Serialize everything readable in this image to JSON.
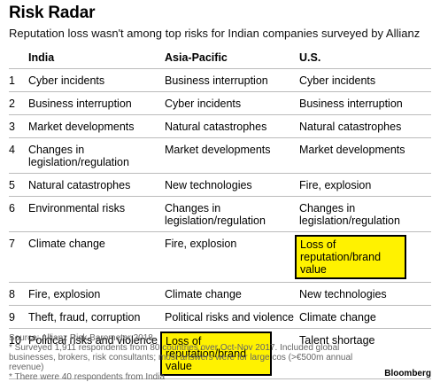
{
  "chart_data": {
    "type": "table",
    "title": "Risk Radar",
    "subtitle": "Reputation loss wasn't among top risks for Indian companies surveyed by Allianz",
    "columns": [
      "",
      "India",
      "Asia-Pacific",
      "U.S."
    ],
    "rows": [
      [
        "1",
        "Cyber incidents",
        "Business interruption",
        "Cyber incidents"
      ],
      [
        "2",
        "Business interruption",
        "Cyber incidents",
        "Business interruption"
      ],
      [
        "3",
        "Market developments",
        "Natural catastrophes",
        "Natural catastrophes"
      ],
      [
        "4",
        "Changes in legislation/regulation",
        "Market developments",
        "Market developments"
      ],
      [
        "5",
        "Natural catastrophes",
        "New technologies",
        "Fire, explosion"
      ],
      [
        "6",
        "Environmental risks",
        "Changes in legislation/regulation",
        "Changes in legislation/regulation"
      ],
      [
        "7",
        "Climate change",
        "Fire, explosion",
        "Loss of reputation/brand value"
      ],
      [
        "8",
        "Fire, explosion",
        "Climate change",
        "New technologies"
      ],
      [
        "9",
        "Theft, fraud, corruption",
        "Political risks and violence",
        "Climate change"
      ],
      [
        "10",
        "Political risks and violence",
        "Loss of reputation/brand value",
        "Talent shortage"
      ]
    ],
    "highlighted_value": "Loss of reputation/brand value",
    "highlight_color": "#fff200"
  },
  "footer": {
    "source": "Source: Allianz Risk Barometer 2018",
    "note1": "* Surveyed 1,911 respondents from 80 countries over Oct-Nov 2017. Included global businesses, brokers, risk consultants; most answers were for large cos (>€500m annual revenue)",
    "note2": "* There were 40 respondents from India"
  },
  "brand": "Bloomberg"
}
